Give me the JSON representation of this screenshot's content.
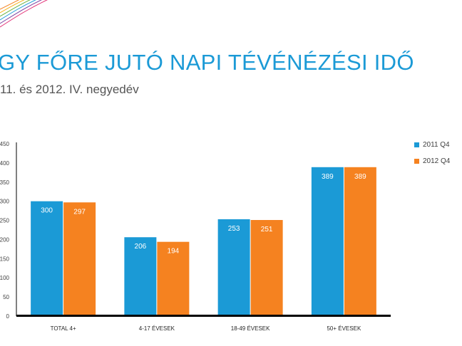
{
  "header": {
    "title": "GY FŐRE JUTÓ NAPI TÉVÉNÉZÉSI IDŐ",
    "subtitle": "11. és 2012. IV. negyedév"
  },
  "colors": {
    "title": "#1b9ad6",
    "series_2011": "#1b9ad6",
    "series_2012": "#f58220",
    "axis": "#000000"
  },
  "chart_data": {
    "type": "bar",
    "categories": [
      "TOTAL 4+",
      "4-17 ÉVESEK",
      "18-49 ÉVESEK",
      "50+ ÉVESEK"
    ],
    "series": [
      {
        "name": "2011 Q4",
        "values": [
          300,
          206,
          253,
          389
        ]
      },
      {
        "name": "2012 Q4",
        "values": [
          297,
          194,
          251,
          389
        ]
      }
    ],
    "ylim": [
      0,
      450
    ],
    "yticks": [
      "0",
      "50",
      "100",
      "150",
      "200",
      "250",
      "300",
      "350",
      "400",
      "450"
    ],
    "legend_position": "right",
    "grid": false
  }
}
